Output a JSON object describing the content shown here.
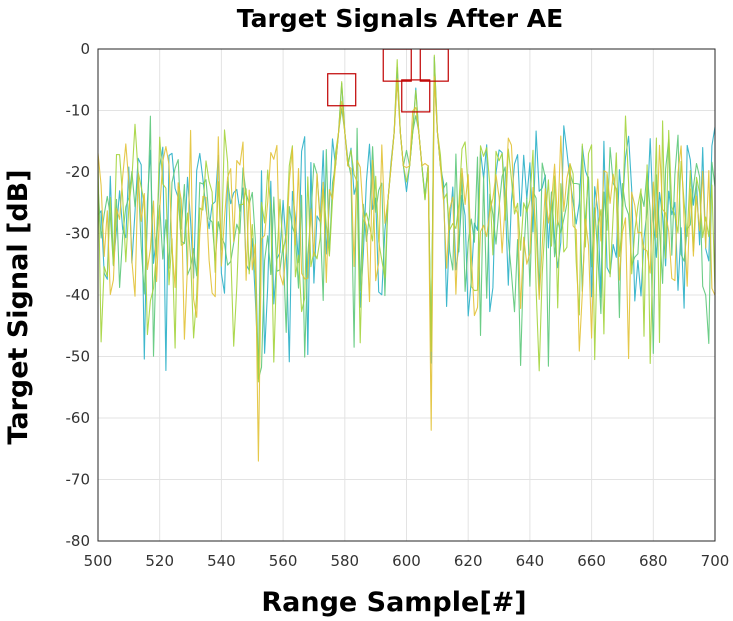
{
  "chart_data": {
    "type": "line",
    "title": "Target Signals After AE",
    "xlabel": "Range Sample[#]",
    "ylabel": "Target Signal [dB]",
    "xlim": [
      500,
      700
    ],
    "ylim": [
      -80,
      0
    ],
    "xticks": [
      500,
      520,
      540,
      560,
      580,
      600,
      620,
      640,
      660,
      680,
      700
    ],
    "yticks": [
      0,
      -10,
      -20,
      -30,
      -40,
      -50,
      -60,
      -70,
      -80
    ],
    "grid": true,
    "num_series": 4,
    "series_colors": [
      "#2ab0c8",
      "#5cc87a",
      "#a4d43c",
      "#e2c236"
    ],
    "marked_peaks": [
      {
        "x": 579,
        "y": -5
      },
      {
        "x": 597,
        "y": -1
      },
      {
        "x": 603,
        "y": -6
      },
      {
        "x": 609,
        "y": -1
      }
    ],
    "strong_nulls": [
      {
        "x": 552,
        "y": -67
      },
      {
        "x": 608,
        "y": -62
      }
    ]
  }
}
